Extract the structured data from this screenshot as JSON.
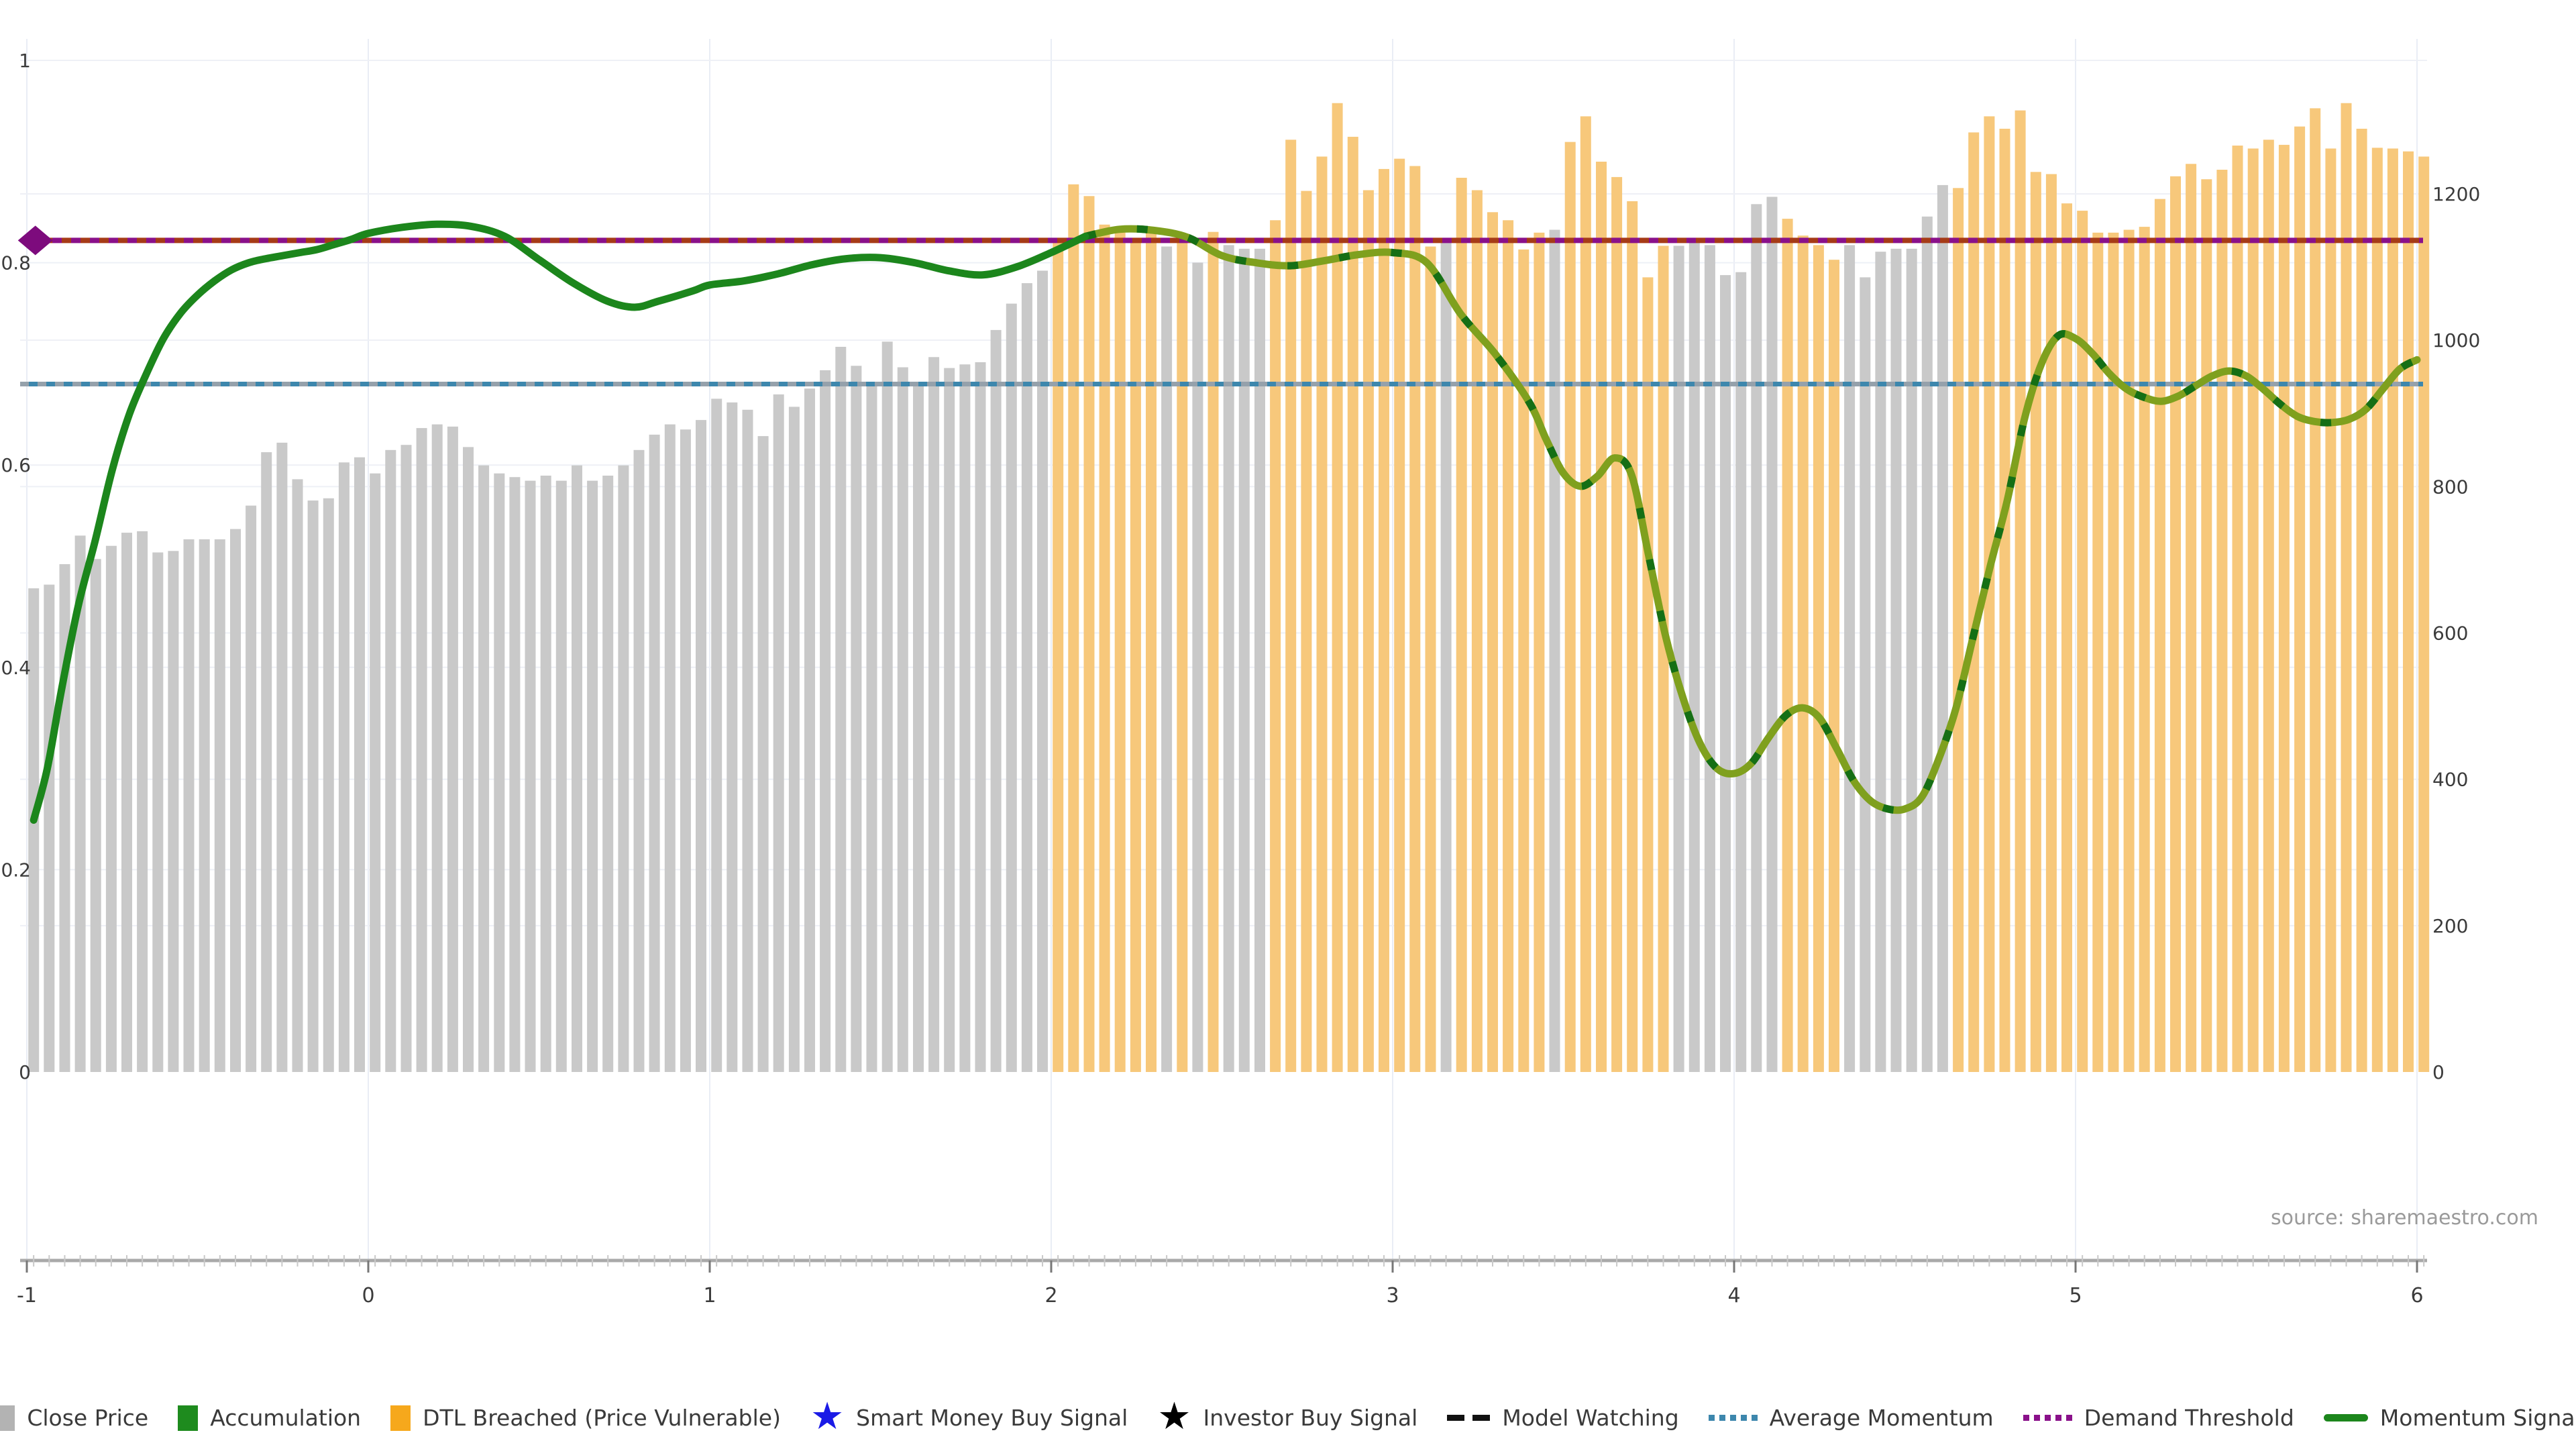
{
  "chart_data": {
    "type": "bar",
    "title": "",
    "source": "source: sharemaestro.com",
    "x_axis": {
      "ticks": [
        -1,
        0,
        1,
        2,
        3,
        4,
        5,
        6
      ],
      "min": -1.07,
      "max": 6.07
    },
    "left_axis": {
      "tick_labels": [
        "0",
        "0.2",
        "0.4",
        "0.6",
        "0.8",
        "1"
      ],
      "tick_values": [
        0,
        0.2,
        0.4,
        0.6,
        0.8,
        1
      ],
      "range": [
        0,
        1
      ]
    },
    "right_axis": {
      "tick_labels": [
        "0",
        "200",
        "400",
        "600",
        "800",
        "1000",
        "1200"
      ],
      "tick_values": [
        0,
        200,
        400,
        600,
        800,
        1000,
        1200
      ],
      "range": [
        0,
        1200
      ]
    },
    "demand_threshold": 0.822,
    "average_momentum": 0.68,
    "bars": {
      "name": "Close Price",
      "x_start": -0.98,
      "x_step": 0.0454545,
      "values": [
        661,
        666,
        694,
        733,
        701,
        719,
        737,
        739,
        710,
        712,
        728,
        728,
        728,
        742,
        774,
        847,
        860,
        810,
        781,
        784,
        833,
        840,
        818,
        850,
        857,
        880,
        885,
        882,
        854,
        829,
        818,
        813,
        808,
        815,
        808,
        829,
        808,
        815,
        829,
        850,
        871,
        885,
        878,
        891,
        920,
        915,
        905,
        869,
        926,
        909,
        934,
        959,
        991,
        965,
        940,
        998,
        963,
        941,
        977,
        962,
        967,
        970,
        1014,
        1050,
        1078,
        1095,
        1140,
        1213,
        1197,
        1158,
        1151,
        1140,
        1150,
        1128,
        1142,
        1106,
        1148,
        1130,
        1125,
        1125,
        1164,
        1274,
        1204,
        1251,
        1324,
        1278,
        1205,
        1234,
        1248,
        1238,
        1128,
        1139,
        1222,
        1205,
        1175,
        1164,
        1124,
        1147,
        1151,
        1271,
        1306,
        1244,
        1223,
        1190,
        1086,
        1129,
        1129,
        1135,
        1130,
        1089,
        1093,
        1186,
        1196,
        1166,
        1143,
        1130,
        1110,
        1130,
        1086,
        1121,
        1125,
        1125,
        1169,
        1212,
        1208,
        1284,
        1306,
        1289,
        1314,
        1230,
        1227,
        1187,
        1177,
        1147,
        1147,
        1151,
        1155,
        1193,
        1224,
        1241,
        1220,
        1233,
        1266,
        1262,
        1274,
        1267,
        1292,
        1317,
        1262,
        1324,
        1289,
        1263,
        1262,
        1258,
        1251
      ],
      "states": "ggggggggggggggggggggggggggggggggggggggggggggggggggggggggggggggggggooooooogogogggooooooooooogoooooogooooooogggggggoooogggggggooooooooooooooooooooooooooooooooo",
      "state_legend": {
        "g": "Close Price",
        "o": "DTL Breached (Price Vulnerable)"
      }
    },
    "momentum_signal": {
      "name": "Momentum Signal",
      "points": [
        [
          -0.98,
          0.249
        ],
        [
          -0.94,
          0.3
        ],
        [
          -0.9,
          0.375
        ],
        [
          -0.85,
          0.46
        ],
        [
          -0.8,
          0.525
        ],
        [
          -0.75,
          0.595
        ],
        [
          -0.7,
          0.65
        ],
        [
          -0.65,
          0.69
        ],
        [
          -0.6,
          0.725
        ],
        [
          -0.55,
          0.75
        ],
        [
          -0.5,
          0.768
        ],
        [
          -0.45,
          0.782
        ],
        [
          -0.4,
          0.793
        ],
        [
          -0.35,
          0.8
        ],
        [
          -0.3,
          0.804
        ],
        [
          -0.25,
          0.807
        ],
        [
          -0.2,
          0.81
        ],
        [
          -0.15,
          0.813
        ],
        [
          -0.1,
          0.818
        ],
        [
          -0.05,
          0.823
        ],
        [
          0,
          0.829
        ],
        [
          0.1,
          0.835
        ],
        [
          0.2,
          0.838
        ],
        [
          0.3,
          0.836
        ],
        [
          0.4,
          0.826
        ],
        [
          0.5,
          0.803
        ],
        [
          0.6,
          0.78
        ],
        [
          0.7,
          0.762
        ],
        [
          0.78,
          0.756
        ],
        [
          0.85,
          0.762
        ],
        [
          0.95,
          0.772
        ],
        [
          1.0,
          0.778
        ],
        [
          1.1,
          0.782
        ],
        [
          1.2,
          0.789
        ],
        [
          1.3,
          0.798
        ],
        [
          1.4,
          0.804
        ],
        [
          1.5,
          0.805
        ],
        [
          1.6,
          0.8
        ],
        [
          1.7,
          0.792
        ],
        [
          1.8,
          0.788
        ],
        [
          1.9,
          0.796
        ],
        [
          2.0,
          0.81
        ],
        [
          2.1,
          0.826
        ],
        [
          2.2,
          0.833
        ],
        [
          2.3,
          0.832
        ],
        [
          2.4,
          0.825
        ],
        [
          2.5,
          0.807
        ],
        [
          2.6,
          0.8
        ],
        [
          2.7,
          0.797
        ],
        [
          2.8,
          0.802
        ],
        [
          2.9,
          0.808
        ],
        [
          3.0,
          0.81
        ],
        [
          3.1,
          0.8
        ],
        [
          3.2,
          0.749
        ],
        [
          3.3,
          0.71
        ],
        [
          3.4,
          0.662
        ],
        [
          3.45,
          0.625
        ],
        [
          3.5,
          0.592
        ],
        [
          3.55,
          0.579
        ],
        [
          3.6,
          0.589
        ],
        [
          3.65,
          0.607
        ],
        [
          3.7,
          0.59
        ],
        [
          3.75,
          0.51
        ],
        [
          3.8,
          0.43
        ],
        [
          3.85,
          0.37
        ],
        [
          3.9,
          0.325
        ],
        [
          3.95,
          0.3
        ],
        [
          4.0,
          0.295
        ],
        [
          4.05,
          0.305
        ],
        [
          4.1,
          0.33
        ],
        [
          4.15,
          0.352
        ],
        [
          4.2,
          0.36
        ],
        [
          4.25,
          0.35
        ],
        [
          4.3,
          0.32
        ],
        [
          4.35,
          0.288
        ],
        [
          4.4,
          0.268
        ],
        [
          4.45,
          0.26
        ],
        [
          4.5,
          0.26
        ],
        [
          4.55,
          0.272
        ],
        [
          4.6,
          0.31
        ],
        [
          4.65,
          0.36
        ],
        [
          4.7,
          0.43
        ],
        [
          4.75,
          0.5
        ],
        [
          4.8,
          0.565
        ],
        [
          4.85,
          0.645
        ],
        [
          4.9,
          0.7
        ],
        [
          4.95,
          0.728
        ],
        [
          5.0,
          0.725
        ],
        [
          5.05,
          0.71
        ],
        [
          5.1,
          0.69
        ],
        [
          5.15,
          0.675
        ],
        [
          5.2,
          0.667
        ],
        [
          5.25,
          0.663
        ],
        [
          5.3,
          0.668
        ],
        [
          5.35,
          0.678
        ],
        [
          5.4,
          0.688
        ],
        [
          5.45,
          0.693
        ],
        [
          5.5,
          0.688
        ],
        [
          5.55,
          0.675
        ],
        [
          5.6,
          0.66
        ],
        [
          5.65,
          0.648
        ],
        [
          5.7,
          0.643
        ],
        [
          5.75,
          0.642
        ],
        [
          5.8,
          0.645
        ],
        [
          5.85,
          0.655
        ],
        [
          5.9,
          0.675
        ],
        [
          5.95,
          0.695
        ],
        [
          6.0,
          0.704
        ]
      ],
      "dash_transition_x": 2.05
    },
    "start_marker": {
      "shape": "diamond",
      "x": -0.975,
      "value": 0.822,
      "color": "#7d0b7d"
    },
    "colors": {
      "bar_gray": "#c9c9c9",
      "bar_orange": "#f7c87b",
      "momentum_green": "#1c861c",
      "momentum_olive": "#7fa01e",
      "momentum_dash": "#156f15",
      "average_momentum_teal": "#3d87ad",
      "average_momentum_alt": "#95a1ab",
      "demand_purple": "#8a118a",
      "demand_alt": "#a63b17",
      "axis_line": "#a9a9a9",
      "grid": "#eef0f6",
      "grid_vertical": "#e9edf5"
    },
    "legend": [
      {
        "label": "Close Price",
        "type": "square",
        "color": "#b3b3b3"
      },
      {
        "label": "Accumulation",
        "type": "square",
        "color": "#1e8b1e"
      },
      {
        "label": "DTL Breached (Price Vulnerable)",
        "type": "square",
        "color": "#f6a81c"
      },
      {
        "label": "Smart Money Buy Signal",
        "type": "star",
        "color": "#1a1ae6"
      },
      {
        "label": "Investor Buy Signal",
        "type": "star",
        "color": "#000000"
      },
      {
        "label": "Model Watching",
        "type": "dashes",
        "color": "#111111"
      },
      {
        "label": "Average Momentum",
        "type": "dots",
        "color": "#3d87ad"
      },
      {
        "label": "Demand Threshold",
        "type": "dots",
        "color": "#8a118a"
      },
      {
        "label": "Momentum Signal",
        "type": "line",
        "color": "#1c861c"
      }
    ]
  }
}
